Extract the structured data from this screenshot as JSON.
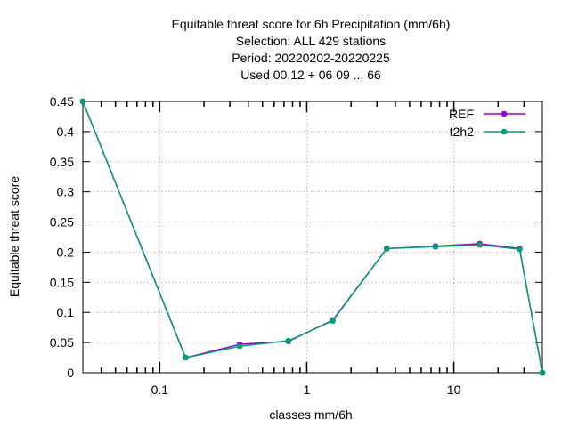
{
  "chart_data": {
    "type": "line",
    "title_lines": [
      "Equitable threat score  for 6h Precipitation (mm/6h)",
      "Selection: ALL     429 stations",
      "Period: 20220202-20220225",
      "Used  00,12  + 06 09 ... 66"
    ],
    "xlabel": "classes mm/6h",
    "ylabel": "Equitable threat score",
    "x_scale": "log",
    "xlim": [
      0.03,
      40
    ],
    "ylim": [
      0,
      0.45
    ],
    "x_ticks": [
      {
        "value": 0.1,
        "label": "0.1"
      },
      {
        "value": 1,
        "label": "1"
      },
      {
        "value": 10,
        "label": "10"
      }
    ],
    "y_ticks": [
      {
        "value": 0,
        "label": "0"
      },
      {
        "value": 0.05,
        "label": "0.05"
      },
      {
        "value": 0.1,
        "label": "0.1"
      },
      {
        "value": 0.15,
        "label": "0.15"
      },
      {
        "value": 0.2,
        "label": "0.2"
      },
      {
        "value": 0.25,
        "label": "0.25"
      },
      {
        "value": 0.3,
        "label": "0.3"
      },
      {
        "value": 0.35,
        "label": "0.35"
      },
      {
        "value": 0.4,
        "label": "0.4"
      },
      {
        "value": 0.45,
        "label": "0.45"
      }
    ],
    "grid": true,
    "legend_position": "top-right",
    "x": [
      0.03,
      0.15,
      0.35,
      0.75,
      1.5,
      3.5,
      7.5,
      15,
      28,
      40
    ],
    "series": [
      {
        "name": "REF",
        "color": "#9400d3",
        "values": [
          0.45,
          0.025,
          0.047,
          0.052,
          0.087,
          0.206,
          0.21,
          0.214,
          0.206,
          0.0
        ]
      },
      {
        "name": "t2h2",
        "color": "#009e73",
        "values": [
          0.45,
          0.025,
          0.044,
          0.053,
          0.086,
          0.206,
          0.209,
          0.212,
          0.205,
          0.0
        ]
      }
    ]
  }
}
